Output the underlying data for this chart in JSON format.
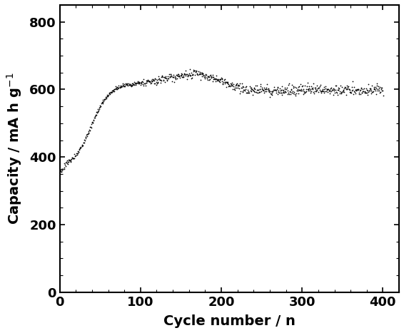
{
  "title": "",
  "xlabel": "Cycle number / n",
  "ylabel": "Capacity / mA h g$^{-1}$",
  "xlim": [
    0,
    420
  ],
  "ylim": [
    0,
    850
  ],
  "xticks": [
    0,
    100,
    200,
    300,
    400
  ],
  "yticks": [
    0,
    200,
    400,
    600,
    800
  ],
  "marker_color": "#000000",
  "bg_color": "#ffffff",
  "marker_size": 1.5,
  "xlabel_fontsize": 14,
  "ylabel_fontsize": 14,
  "tick_fontsize": 13,
  "noise_early": 3,
  "noise_mid": 6,
  "noise_late": 8,
  "dots_per_cycle": 2
}
